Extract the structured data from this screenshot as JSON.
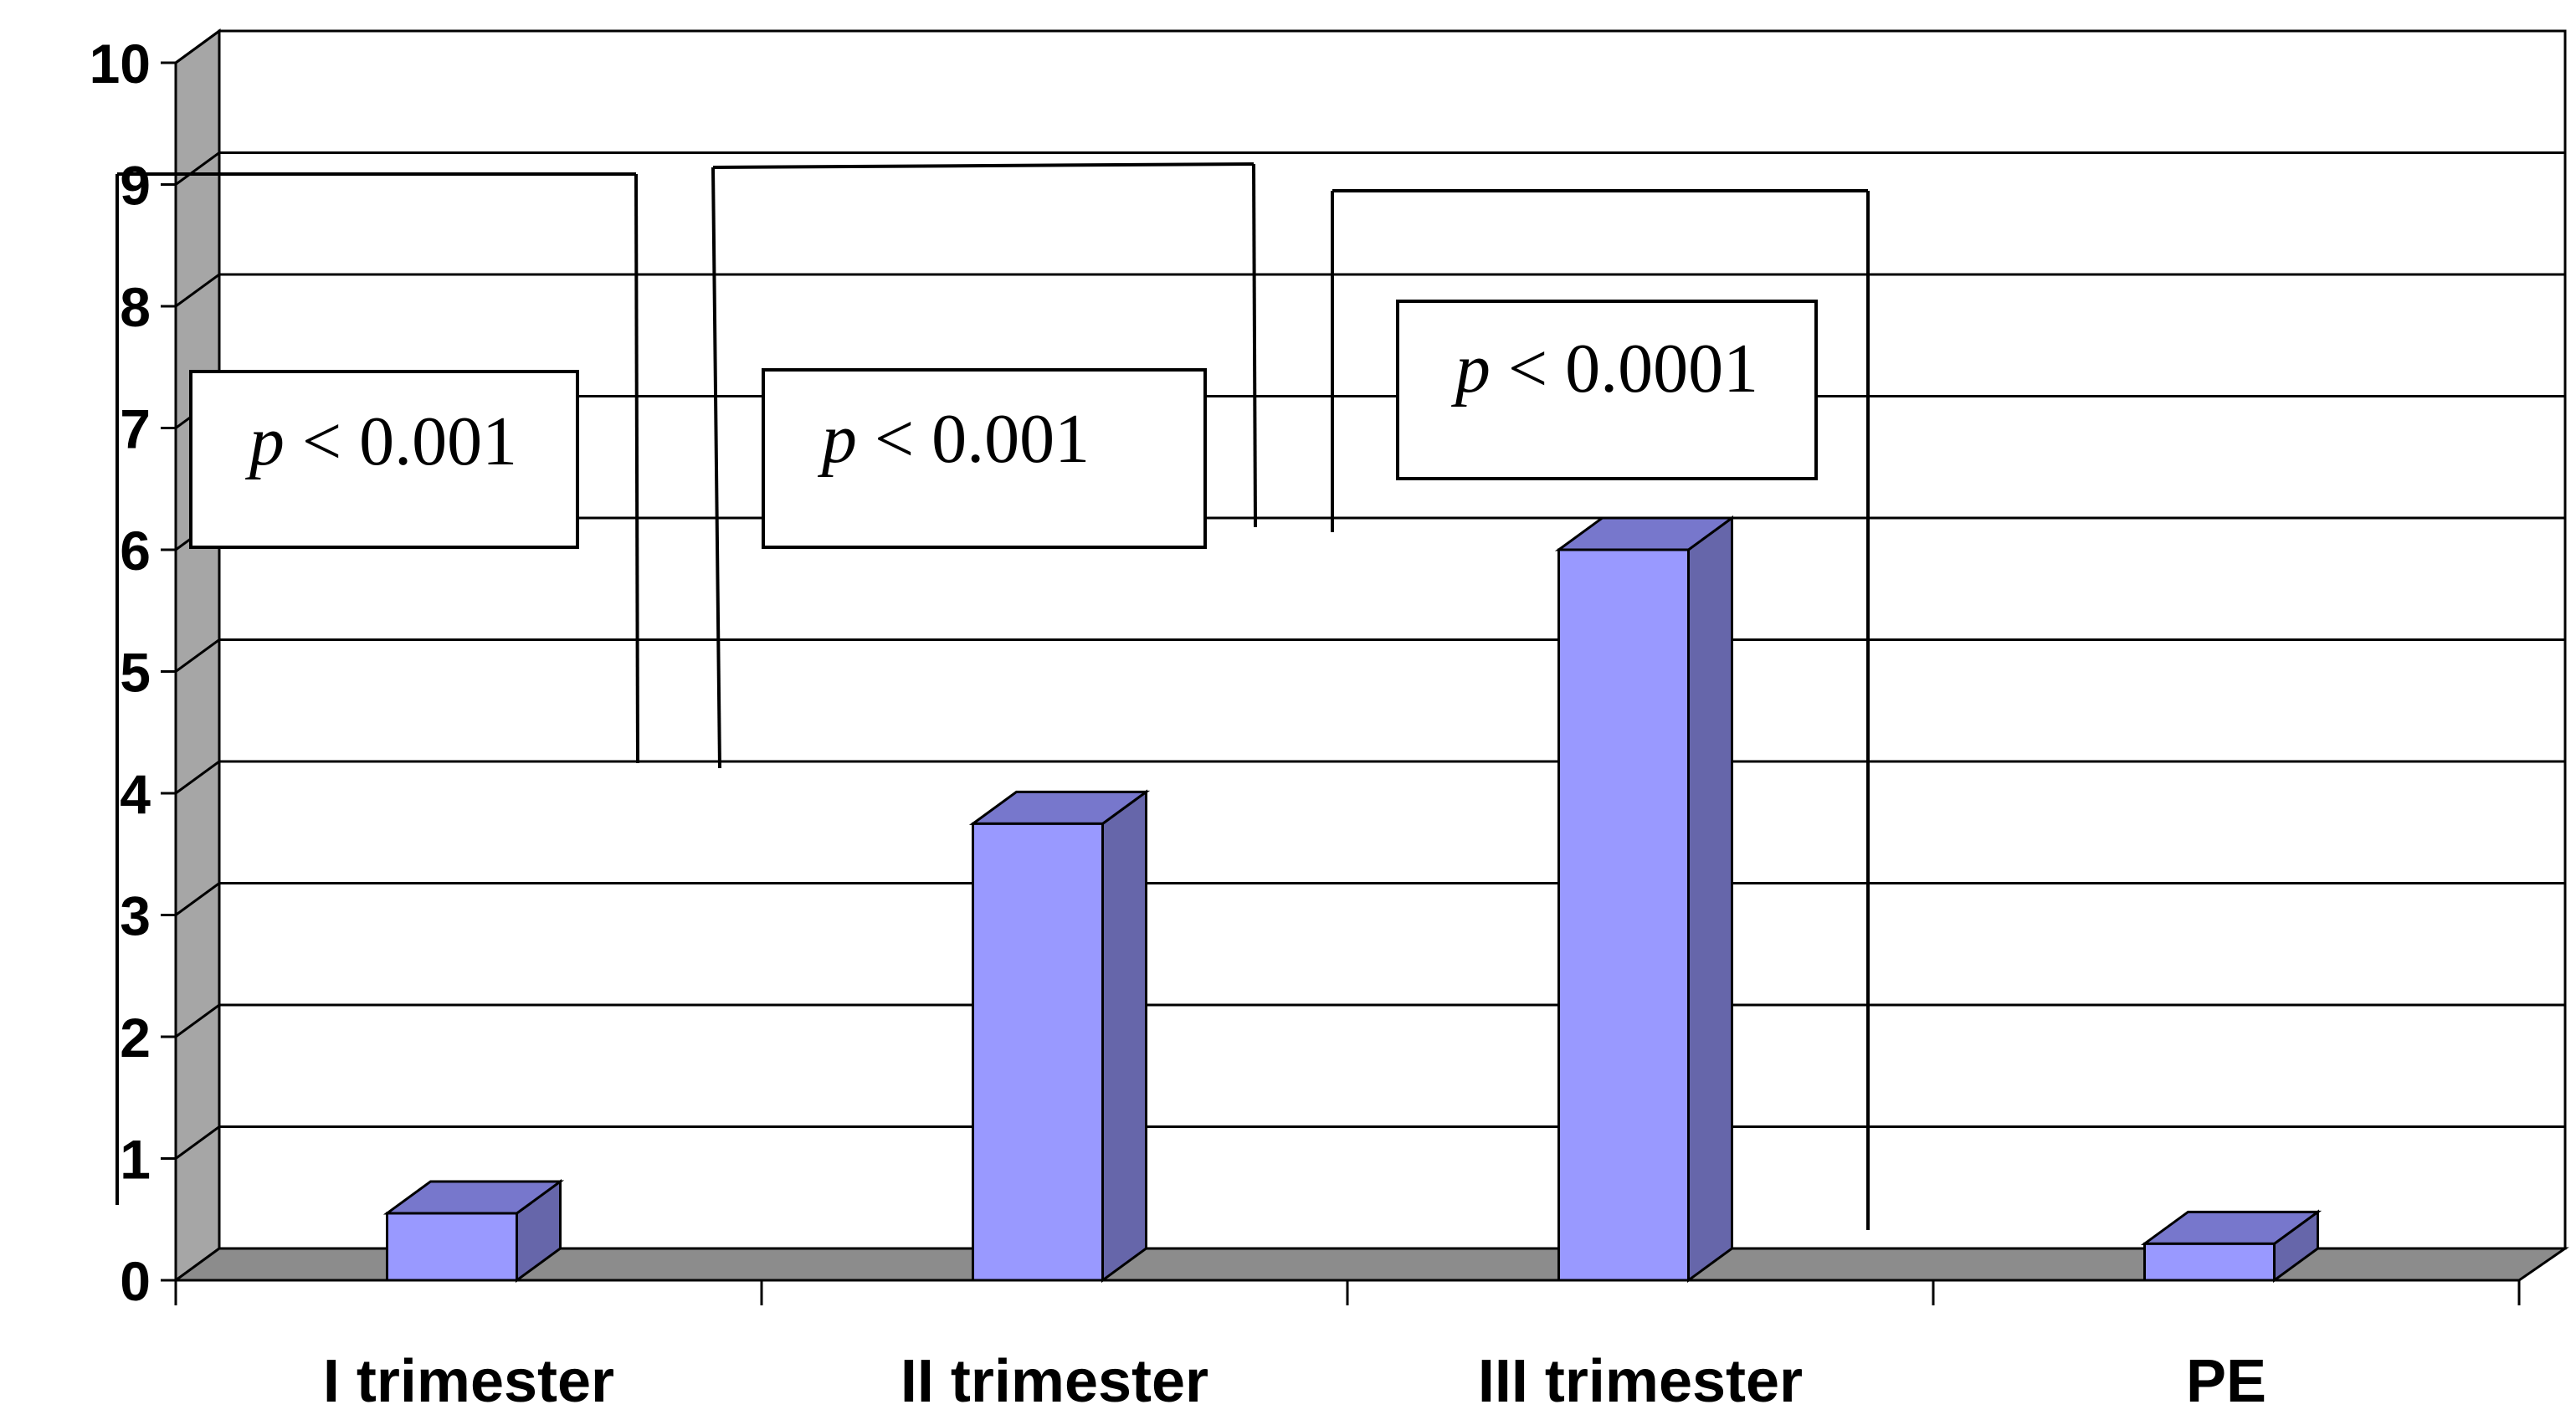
{
  "chart_data": {
    "type": "bar",
    "categories": [
      "I trimester",
      "II trimester",
      "III trimester",
      "PE"
    ],
    "values": [
      0.55,
      3.75,
      6.0,
      0.3
    ],
    "ylim": [
      0,
      10
    ],
    "yticks": [
      "0",
      "1",
      "2",
      "3",
      "4",
      "5",
      "6",
      "7",
      "8",
      "9",
      "10"
    ],
    "grid": true,
    "style": "3d-column",
    "colors": {
      "bar_front": "#9999ff",
      "bar_side": "#6666aa",
      "bar_top": "#7777cc",
      "wall": "#a6a6a6",
      "floor": "#8c8c8c"
    },
    "annotations": [
      {
        "p": "p",
        "op": "<",
        "value": "0.001",
        "compares": [
          "I trimester",
          "PE"
        ]
      },
      {
        "p": "p",
        "op": "<",
        "value": "0.001",
        "compares": [
          "I trimester",
          "II trimester"
        ]
      },
      {
        "p": "p",
        "op": "<",
        "value": "0.0001",
        "compares": [
          "III trimester",
          "PE"
        ]
      }
    ]
  }
}
